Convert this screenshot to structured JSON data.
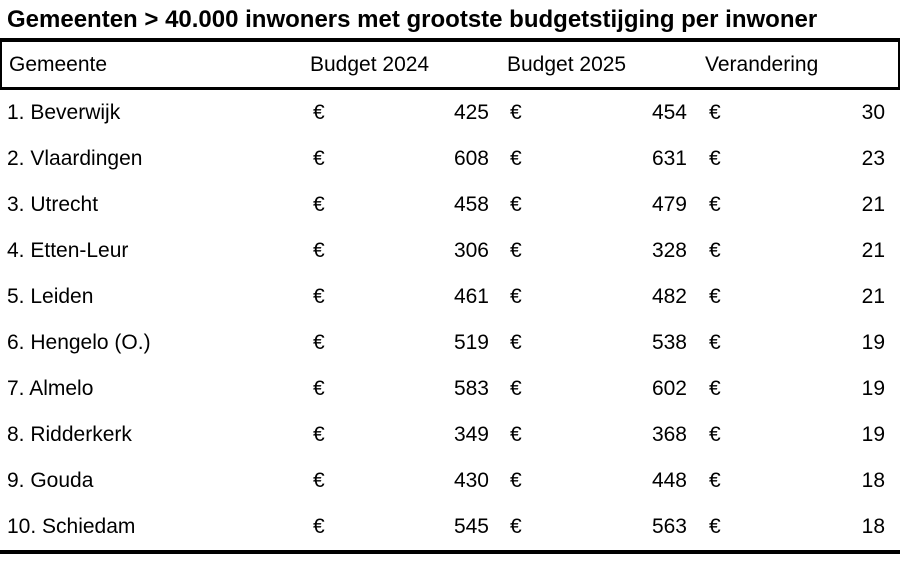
{
  "title": "Gemeenten > 40.000 inwoners met grootste budgetstijging per inwoner",
  "table": {
    "currency_symbol": "€",
    "columns": {
      "gemeente": "Gemeente",
      "budget_2024": "Budget 2024",
      "budget_2025": "Budget 2025",
      "verandering": "Verandering"
    },
    "rows": [
      {
        "gemeente": "1. Beverwijk",
        "budget_2024": "425",
        "budget_2025": "454",
        "verandering": "30"
      },
      {
        "gemeente": "2. Vlaardingen",
        "budget_2024": "608",
        "budget_2025": "631",
        "verandering": "23"
      },
      {
        "gemeente": "3. Utrecht",
        "budget_2024": "458",
        "budget_2025": "479",
        "verandering": "21"
      },
      {
        "gemeente": "4. Etten-Leur",
        "budget_2024": "306",
        "budget_2025": "328",
        "verandering": "21"
      },
      {
        "gemeente": "5. Leiden",
        "budget_2024": "461",
        "budget_2025": "482",
        "verandering": "21"
      },
      {
        "gemeente": "6. Hengelo (O.)",
        "budget_2024": "519",
        "budget_2025": "538",
        "verandering": "19"
      },
      {
        "gemeente": "7. Almelo",
        "budget_2024": "583",
        "budget_2025": "602",
        "verandering": "19"
      },
      {
        "gemeente": "8. Ridderkerk",
        "budget_2024": "349",
        "budget_2025": "368",
        "verandering": "19"
      },
      {
        "gemeente": "9. Gouda",
        "budget_2024": "430",
        "budget_2025": "448",
        "verandering": "18"
      },
      {
        "gemeente": "10. Schiedam",
        "budget_2024": "545",
        "budget_2025": "563",
        "verandering": "18"
      }
    ]
  },
  "colors": {
    "text": "#000000",
    "background": "#ffffff",
    "rule": "#000000"
  },
  "chart_data": {
    "type": "table",
    "title": "Gemeenten > 40.000 inwoners met grootste budgetstijging per inwoner",
    "columns": [
      "Gemeente",
      "Budget 2024",
      "Budget 2025",
      "Verandering"
    ],
    "currency": "€",
    "rows": [
      {
        "rank": 1,
        "gemeente": "Beverwijk",
        "budget_2024": 425,
        "budget_2025": 454,
        "verandering": 30
      },
      {
        "rank": 2,
        "gemeente": "Vlaardingen",
        "budget_2024": 608,
        "budget_2025": 631,
        "verandering": 23
      },
      {
        "rank": 3,
        "gemeente": "Utrecht",
        "budget_2024": 458,
        "budget_2025": 479,
        "verandering": 21
      },
      {
        "rank": 4,
        "gemeente": "Etten-Leur",
        "budget_2024": 306,
        "budget_2025": 328,
        "verandering": 21
      },
      {
        "rank": 5,
        "gemeente": "Leiden",
        "budget_2024": 461,
        "budget_2025": 482,
        "verandering": 21
      },
      {
        "rank": 6,
        "gemeente": "Hengelo (O.)",
        "budget_2024": 519,
        "budget_2025": 538,
        "verandering": 19
      },
      {
        "rank": 7,
        "gemeente": "Almelo",
        "budget_2024": 583,
        "budget_2025": 602,
        "verandering": 19
      },
      {
        "rank": 8,
        "gemeente": "Ridderkerk",
        "budget_2024": 349,
        "budget_2025": 368,
        "verandering": 19
      },
      {
        "rank": 9,
        "gemeente": "Gouda",
        "budget_2024": 430,
        "budget_2025": 448,
        "verandering": 18
      },
      {
        "rank": 10,
        "gemeente": "Schiedam",
        "budget_2024": 545,
        "budget_2025": 563,
        "verandering": 18
      }
    ]
  }
}
